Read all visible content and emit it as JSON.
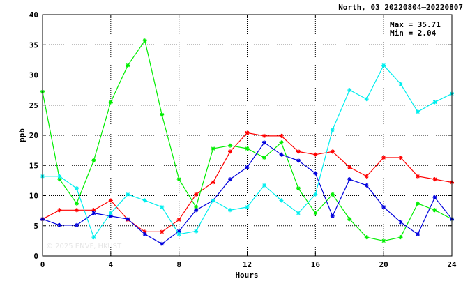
{
  "chart_data": {
    "type": "line",
    "title": "North, 03 20220804–20220807",
    "xlabel": "Hours",
    "ylabel": "ppb",
    "xlim": [
      0,
      24
    ],
    "ylim": [
      0,
      40
    ],
    "xticks": [
      0,
      4,
      8,
      12,
      16,
      20,
      24
    ],
    "yticks": [
      0,
      5,
      10,
      15,
      20,
      25,
      30,
      35,
      40
    ],
    "grid": true,
    "marker": "asterisk",
    "stats": {
      "max_label": "Max = 35.71",
      "min_label": "Min =  2.04"
    },
    "watermark": "© 2025  ENVF, HKUST",
    "x": [
      0,
      1,
      2,
      3,
      4,
      5,
      6,
      7,
      8,
      9,
      10,
      11,
      12,
      13,
      14,
      15,
      16,
      17,
      18,
      19,
      20,
      21,
      22,
      23,
      24
    ],
    "series": [
      {
        "color": "#ff0000",
        "values": [
          6.1,
          7.6,
          7.6,
          7.6,
          9.2,
          6.0,
          4.0,
          4.0,
          6.0,
          10.2,
          12.2,
          17.3,
          20.4,
          19.9,
          19.9,
          17.3,
          16.8,
          17.3,
          14.7,
          13.2,
          16.3,
          16.3,
          13.2,
          12.7,
          12.2
        ]
      },
      {
        "color": "#00ee00",
        "values": [
          27.2,
          12.7,
          8.7,
          15.8,
          25.5,
          31.6,
          35.7,
          23.4,
          12.7,
          8.1,
          17.8,
          18.3,
          17.8,
          16.3,
          18.8,
          11.2,
          7.1,
          10.2,
          6.1,
          3.1,
          2.5,
          3.1,
          8.7,
          7.6,
          6.1
        ]
      },
      {
        "color": "#0000dd",
        "values": [
          6.1,
          5.1,
          5.1,
          7.1,
          6.6,
          6.1,
          3.6,
          2.0,
          4.1,
          7.6,
          9.2,
          12.7,
          14.7,
          18.8,
          16.8,
          15.8,
          13.7,
          6.6,
          12.7,
          11.7,
          8.1,
          5.6,
          3.6,
          9.7,
          6.1
        ]
      },
      {
        "color": "#00eeee",
        "values": [
          13.2,
          13.2,
          11.2,
          3.1,
          7.1,
          10.2,
          9.2,
          8.1,
          3.6,
          4.1,
          9.2,
          7.6,
          8.1,
          11.7,
          9.2,
          7.1,
          10.2,
          20.9,
          27.5,
          26.0,
          31.6,
          28.5,
          23.9,
          25.5,
          26.9
        ]
      }
    ]
  }
}
